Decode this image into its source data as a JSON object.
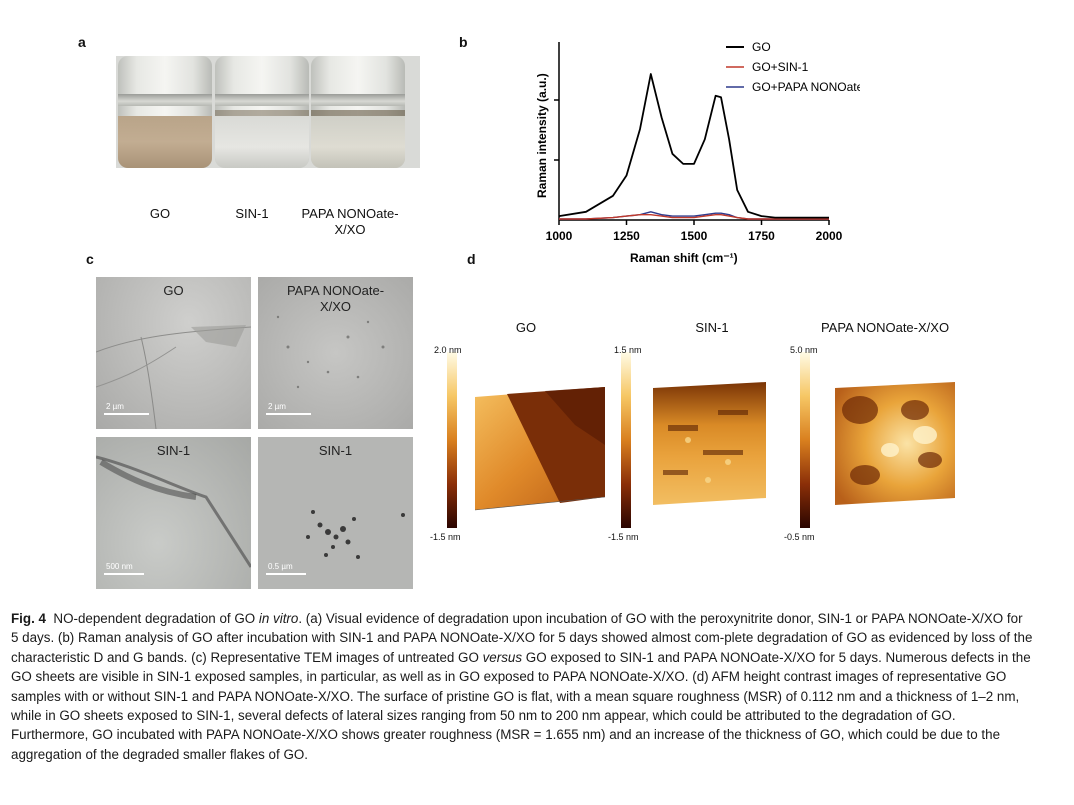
{
  "panels": {
    "a": {
      "letter": "a",
      "vials": [
        "GO",
        "SIN-1",
        "PAPA NONOate-\nX/XO"
      ]
    },
    "b": {
      "letter": "b",
      "xlabel": "Raman shift (cm⁻¹)",
      "ylabel": "Raman intensity (a.u.)",
      "xticks": [
        "1000",
        "1250",
        "1500",
        "1750",
        "2000"
      ],
      "legend": [
        "GO",
        "GO+SIN-1",
        "GO+PAPA NONOate-X/XO"
      ]
    },
    "c": {
      "letter": "c",
      "images": [
        {
          "label": "GO",
          "scale": "2 µm"
        },
        {
          "label": "PAPA NONOate-\nX/XO",
          "scale": "2 µm"
        },
        {
          "label": "SIN-1",
          "scale": "500 nm"
        },
        {
          "label": "SIN-1",
          "scale": "0.5 µm"
        }
      ]
    },
    "d": {
      "letter": "d",
      "images": [
        {
          "title": "GO",
          "top": "2.0 nm",
          "bottom": "-1.5 nm"
        },
        {
          "title": "SIN-1",
          "top": "1.5 nm",
          "bottom": "-1.5 nm"
        },
        {
          "title": "PAPA NONOate-X/XO",
          "top": "5.0 nm",
          "bottom": "-0.5 nm"
        }
      ]
    }
  },
  "chart_data": {
    "type": "line",
    "xlabel": "Raman shift (cm⁻¹)",
    "ylabel": "Raman intensity (a.u.)",
    "xlim": [
      1000,
      2000
    ],
    "legend_position": "top-right",
    "x": [
      1000,
      1100,
      1200,
      1250,
      1300,
      1340,
      1380,
      1420,
      1460,
      1500,
      1540,
      1580,
      1600,
      1630,
      1660,
      1700,
      1750,
      1800,
      1900,
      2000
    ],
    "series": [
      {
        "name": "GO",
        "color": "#000000",
        "values": [
          0.02,
          0.05,
          0.16,
          0.3,
          0.62,
          1.0,
          0.7,
          0.45,
          0.38,
          0.38,
          0.55,
          0.85,
          0.84,
          0.55,
          0.2,
          0.05,
          0.02,
          0.01,
          0.01,
          0.01
        ]
      },
      {
        "name": "GO+SIN-1",
        "color": "#c0392b",
        "values": [
          0.0,
          0.0,
          0.01,
          0.02,
          0.03,
          0.03,
          0.02,
          0.01,
          0.01,
          0.01,
          0.02,
          0.03,
          0.03,
          0.02,
          0.01,
          0.0,
          0.0,
          0.0,
          0.0,
          0.0
        ]
      },
      {
        "name": "GO+PAPA NONOate-X/XO",
        "color": "#2e3a8c",
        "values": [
          0.0,
          0.0,
          0.01,
          0.02,
          0.03,
          0.05,
          0.03,
          0.02,
          0.02,
          0.02,
          0.03,
          0.04,
          0.04,
          0.03,
          0.01,
          0.0,
          0.0,
          0.0,
          0.0,
          0.0
        ]
      }
    ]
  },
  "caption": {
    "label": "Fig. 4",
    "text_1": "NO-dependent degradation of GO ",
    "italic_1": "in vitro",
    "text_2": ". (a) Visual evidence of degradation upon incubation of GO with the peroxynitrite donor, SIN-1 or PAPA NONOate-X/XO for 5 days. (b) Raman analysis of GO after incubation with SIN-1 and PAPA NONOate-X/XO for 5 days showed almost com-plete degradation of GO as evidenced by loss of the characteristic D and G bands. (c) Representative TEM images of untreated GO ",
    "italic_2": "versus",
    "text_3": " GO exposed to SIN-1 and PAPA NONOate-X/XO for 5 days. Numerous defects in the GO sheets are visible in SIN-1 exposed samples, in particular, as well as in GO exposed to PAPA NONOate-X/XO. (d) AFM height contrast images of representative GO samples with or without SIN-1 and PAPA NONOate-X/XO. The surface of pristine GO is flat, with a mean square roughness (MSR) of 0.112 nm and a thickness of 1–2 nm, while in GO sheets exposed to SIN-1, several defects of lateral sizes ranging from 50 nm to 200 nm appear, which could be attributed to the degradation of GO. Furthermore, GO incubated with PAPA NONOate-X/XO shows greater roughness (MSR = 1.655 nm) and an increase of the thickness of GO, which could be due to the aggregation of the degraded smaller flakes of GO."
  }
}
